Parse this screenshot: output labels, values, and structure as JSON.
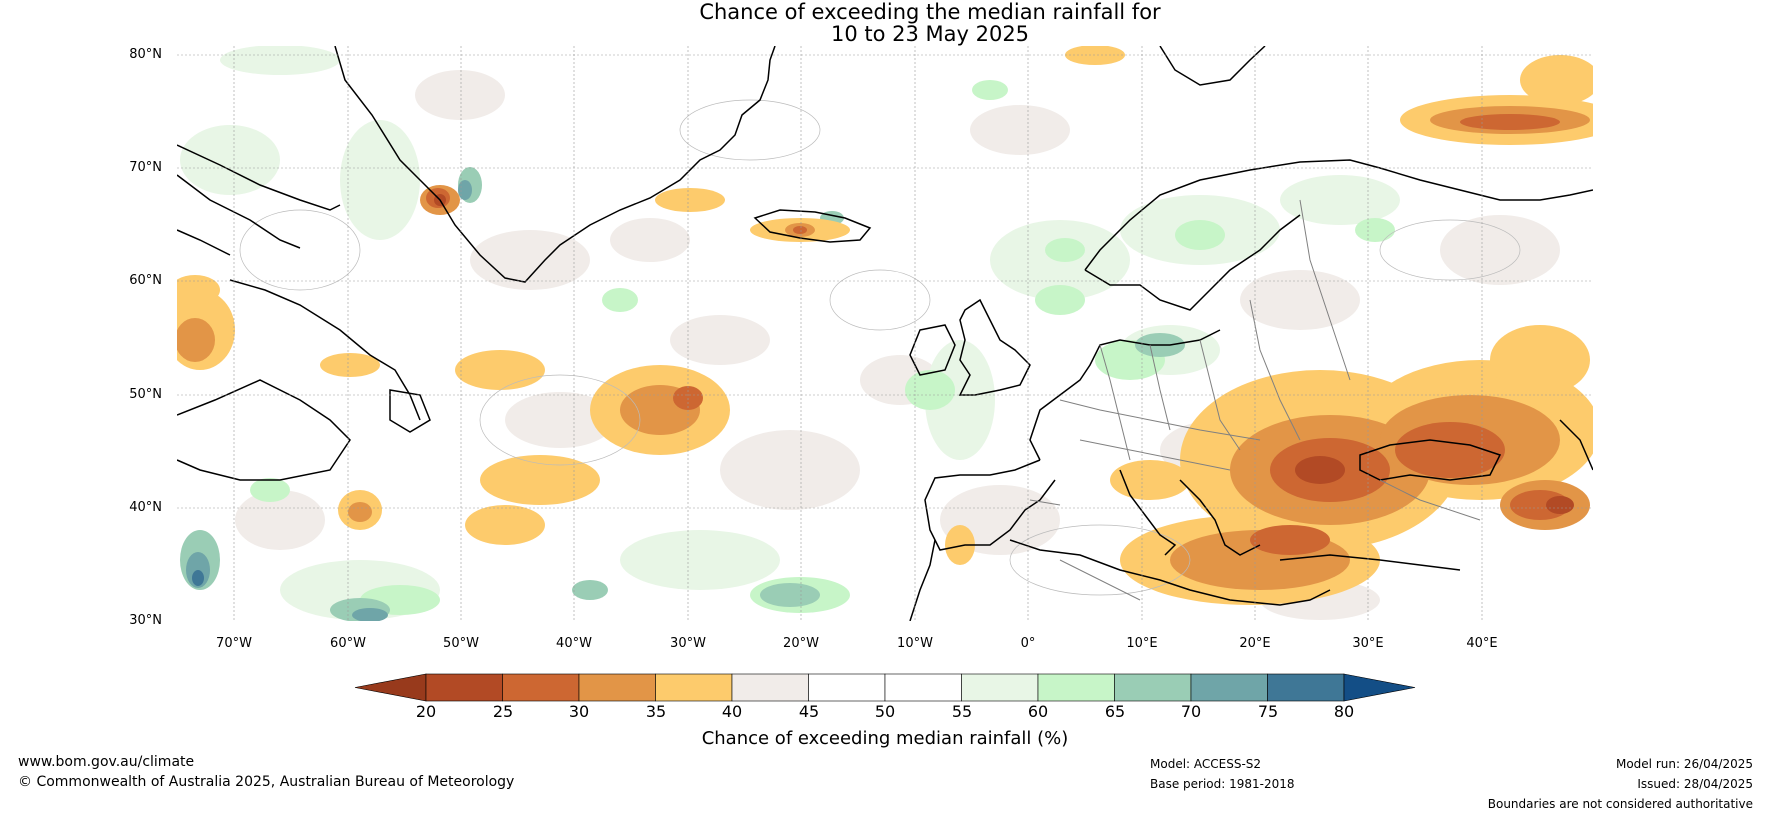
{
  "title": {
    "line1": "Chance of exceeding the median rainfall for",
    "line2": "10 to 23 May 2025"
  },
  "latitude_labels": [
    "80°N",
    "70°N",
    "60°N",
    "50°N",
    "40°N",
    "30°N"
  ],
  "longitude_labels": [
    "70°W",
    "60°W",
    "50°W",
    "40°W",
    "30°W",
    "20°W",
    "10°W",
    "0°",
    "10°E",
    "20°E",
    "30°E",
    "40°E"
  ],
  "colorbar": {
    "label": "Chance of exceeding median rainfall (%)",
    "ticks": [
      "20",
      "25",
      "30",
      "35",
      "40",
      "45",
      "50",
      "55",
      "60",
      "65",
      "70",
      "75",
      "80"
    ],
    "colors": [
      "#983a1c",
      "#b24a25",
      "#cd6732",
      "#e29547",
      "#fdcb6c",
      "#f1ece9",
      "#ffffff",
      "#ffffff",
      "#e8f6e6",
      "#c7f5c8",
      "#9acdb5",
      "#6fa5a8",
      "#3f7796",
      "#134e86"
    ]
  },
  "footer": {
    "website": "www.bom.gov.au/climate",
    "copyright": "© Commonwealth of Australia 2025, Australian Bureau of Meteorology",
    "model": "Model: ACCESS-S2",
    "base_period": "Base period: 1981-2018",
    "model_run": "Model run: 26/04/2025",
    "issued": "Issued: 28/04/2025",
    "disclaimer": "Boundaries are not considered authoritative"
  }
}
